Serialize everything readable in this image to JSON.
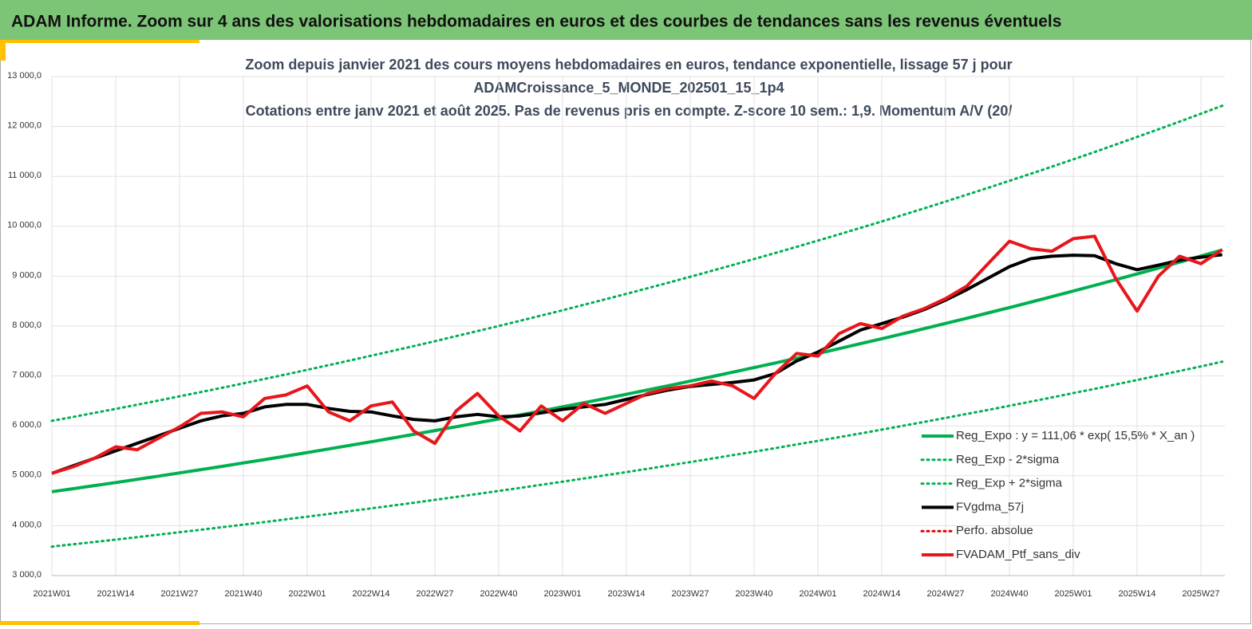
{
  "header": {
    "title": "ADAM Informe. Zoom sur 4 ans des valorisations hebdomadaires en euros et des courbes de tendances sans les revenus éventuels"
  },
  "chart_data": {
    "type": "line",
    "title_lines": [
      "Zoom depuis janvier 2021 des cours moyens hebdomadaires  en euros, tendance exponentielle, lissage 57 j pour",
      "ADAMCroissance_5_MONDE_202501_15_1p4",
      "Cotations entre janv 2021 et août 2025. Pas de revenus pris en compte. Z-score 10 sem.: 1,9. Momentum A/V (20/"
    ],
    "categories": [
      "2021W01",
      null,
      null,
      "2021W14",
      null,
      null,
      "2021W27",
      null,
      null,
      "2021W40",
      null,
      null,
      "2022W01",
      null,
      null,
      "2022W14",
      null,
      null,
      "2022W27",
      null,
      null,
      "2022W40",
      null,
      null,
      "2023W01",
      null,
      null,
      "2023W14",
      null,
      null,
      "2023W27",
      null,
      null,
      "2023W40",
      null,
      null,
      "2024W01",
      null,
      null,
      "2024W14",
      null,
      null,
      "2024W27",
      null,
      null,
      "2024W40",
      null,
      null,
      "2025W01",
      null,
      null,
      "2025W14",
      null,
      null,
      "2025W27",
      null
    ],
    "ylim": [
      3000,
      13000
    ],
    "yticks": [
      {
        "value": 3000,
        "label": "3 000,0"
      },
      {
        "value": 4000,
        "label": "4 000,0"
      },
      {
        "value": 5000,
        "label": "5 000,0"
      },
      {
        "value": 6000,
        "label": "6 000,0"
      },
      {
        "value": 7000,
        "label": "7 000,0"
      },
      {
        "value": 8000,
        "label": "8 000,0"
      },
      {
        "value": 9000,
        "label": "9 000,0"
      },
      {
        "value": 10000,
        "label": "10 000,0"
      },
      {
        "value": 11000,
        "label": "11 000,0"
      },
      {
        "value": 12000,
        "label": "12 000,0"
      },
      {
        "value": 13000,
        "label": "13 000,0"
      }
    ],
    "grid": true,
    "legend_position": "lower right",
    "series": [
      {
        "name": "Reg_Expo : y = 111,06 * exp( 15,5% *  X_an )",
        "color": "#00b050",
        "style": "solid",
        "width": 4,
        "values": [
          4680,
          4741,
          4803,
          4865,
          4928,
          4992,
          5057,
          5123,
          5189,
          5257,
          5325,
          5394,
          5465,
          5536,
          5608,
          5681,
          5755,
          5829,
          5905,
          5982,
          6060,
          6139,
          6219,
          6299,
          6381,
          6464,
          6548,
          6633,
          6720,
          6807,
          6896,
          6985,
          7076,
          7168,
          7261,
          7356,
          7451,
          7548,
          7647,
          7746,
          7846,
          7949,
          8052,
          8157,
          8263,
          8370,
          8479,
          8589,
          8701,
          8814,
          8929,
          9045,
          9162,
          9281,
          9402,
          9524
        ]
      },
      {
        "name": "Reg_Exp - 2*sigma",
        "color": "#00b050",
        "style": "dotted",
        "width": 3,
        "values": [
          3580,
          3627,
          3674,
          3721,
          3770,
          3819,
          3869,
          3919,
          3970,
          4021,
          4073,
          4126,
          4180,
          4235,
          4290,
          4346,
          4402,
          4459,
          4517,
          4576,
          4636,
          4696,
          4757,
          4819,
          4881,
          4945,
          5009,
          5074,
          5141,
          5207,
          5275,
          5344,
          5413,
          5483,
          5555,
          5627,
          5700,
          5774,
          5849,
          5925,
          6002,
          6080,
          6159,
          6240,
          6320,
          6403,
          6486,
          6570,
          6656,
          6742,
          6830,
          6919,
          7009,
          7100,
          7191,
          7286
        ]
      },
      {
        "name": "Reg_Exp + 2*sigma",
        "color": "#00b050",
        "style": "dotted",
        "width": 3,
        "values": [
          6100,
          6179,
          6260,
          6341,
          6423,
          6507,
          6592,
          6677,
          6764,
          6852,
          6941,
          7031,
          7123,
          7216,
          7310,
          7405,
          7501,
          7598,
          7697,
          7798,
          7899,
          8001,
          8106,
          8211,
          8317,
          8426,
          8535,
          8646,
          8759,
          8872,
          8988,
          9105,
          9223,
          9343,
          9465,
          9588,
          9712,
          9839,
          9967,
          10096,
          10227,
          10360,
          10495,
          10632,
          10770,
          10910,
          11051,
          11195,
          11341,
          11488,
          11638,
          11789,
          11942,
          12098,
          12255,
          12414
        ]
      },
      {
        "name": "FVgdma_57j",
        "color": "#000000",
        "style": "solid",
        "width": 4,
        "values": [
          5050,
          5200,
          5350,
          5500,
          5650,
          5800,
          5950,
          6100,
          6200,
          6250,
          6380,
          6430,
          6430,
          6350,
          6290,
          6280,
          6200,
          6130,
          6100,
          6180,
          6230,
          6180,
          6200,
          6260,
          6330,
          6380,
          6430,
          6530,
          6630,
          6720,
          6790,
          6830,
          6870,
          6920,
          7050,
          7300,
          7480,
          7700,
          7920,
          8050,
          8180,
          8330,
          8520,
          8730,
          8960,
          9190,
          9350,
          9400,
          9420,
          9410,
          9250,
          9130,
          9220,
          9320,
          9380,
          9430
        ]
      },
      {
        "name": "Perfo. absolue",
        "color": "#e00000",
        "style": "dotted",
        "width": 3,
        "values": [
          null,
          null,
          null,
          null,
          null,
          null,
          null,
          null,
          null,
          null,
          null,
          null,
          null,
          null,
          null,
          null,
          null,
          null,
          null,
          null,
          null,
          null,
          null,
          null,
          null,
          null,
          null,
          null,
          null,
          null,
          null,
          null,
          null,
          null,
          null,
          null,
          null,
          null,
          null,
          null,
          null,
          null,
          null,
          null,
          null,
          null,
          null,
          null,
          null,
          null,
          null,
          null,
          null,
          null,
          null,
          null
        ]
      },
      {
        "name": "FVADAM_Ptf_sans_div",
        "color": "#e8151b",
        "style": "solid",
        "width": 4,
        "values": [
          5050,
          5180,
          5350,
          5580,
          5520,
          5750,
          5980,
          6250,
          6280,
          6180,
          6550,
          6620,
          6800,
          6280,
          6100,
          6400,
          6480,
          5900,
          5650,
          6300,
          6650,
          6200,
          5900,
          6400,
          6100,
          6450,
          6250,
          6450,
          6650,
          6750,
          6800,
          6900,
          6800,
          6550,
          7050,
          7450,
          7400,
          7850,
          8050,
          7950,
          8200,
          8350,
          8550,
          8800,
          9250,
          9700,
          9550,
          9500,
          9750,
          9800,
          8950,
          8300,
          9000,
          9400,
          9250,
          9530
        ]
      }
    ]
  }
}
